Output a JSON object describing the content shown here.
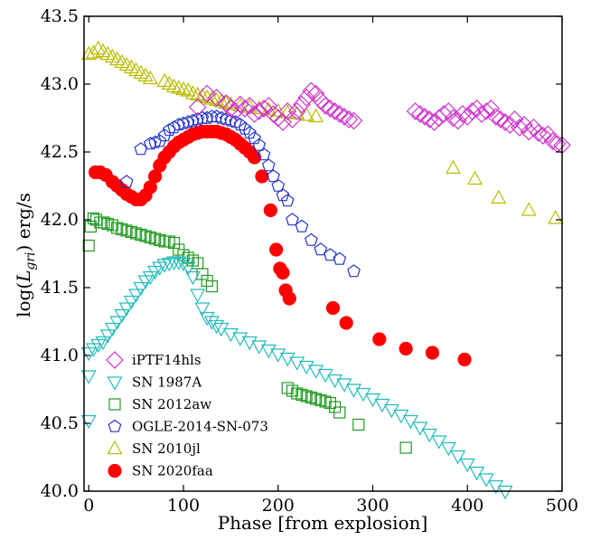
{
  "chart_data": {
    "type": "scatter",
    "title": "",
    "xlabel": "Phase [from explosion]",
    "ylabel": "log(L_gri) erg/s",
    "ylabel_parts": {
      "pre": "log(",
      "italic": "L",
      "sub": "gri",
      "post": ") erg/s"
    },
    "xlim": [
      -5,
      500
    ],
    "ylim": [
      40.0,
      43.5
    ],
    "xticks": [
      0,
      100,
      200,
      300,
      400,
      500
    ],
    "yticks": [
      40.0,
      40.5,
      41.0,
      41.5,
      42.0,
      42.5,
      43.0,
      43.5
    ],
    "xtick_labels": [
      "0",
      "100",
      "200",
      "300",
      "400",
      "500"
    ],
    "ytick_labels": [
      "40.0",
      "40.5",
      "41.0",
      "41.5",
      "42.0",
      "42.5",
      "43.0",
      "43.5"
    ],
    "grid": false,
    "legend_position": "lower-left",
    "series": [
      {
        "name": "iPTF14hls",
        "marker": "diamond",
        "color": "#cc33cc",
        "filled": false,
        "points": [
          [
            115,
            42.83
          ],
          [
            125,
            42.93
          ],
          [
            135,
            42.9
          ],
          [
            145,
            42.86
          ],
          [
            150,
            42.82
          ],
          [
            155,
            42.8
          ],
          [
            160,
            42.85
          ],
          [
            165,
            42.82
          ],
          [
            170,
            42.84
          ],
          [
            175,
            42.78
          ],
          [
            180,
            42.8
          ],
          [
            185,
            42.82
          ],
          [
            190,
            42.84
          ],
          [
            195,
            42.78
          ],
          [
            200,
            42.75
          ],
          [
            205,
            42.72
          ],
          [
            210,
            42.8
          ],
          [
            215,
            42.74
          ],
          [
            220,
            42.8
          ],
          [
            225,
            42.85
          ],
          [
            230,
            42.9
          ],
          [
            235,
            42.95
          ],
          [
            240,
            42.93
          ],
          [
            245,
            42.88
          ],
          [
            250,
            42.84
          ],
          [
            255,
            42.82
          ],
          [
            260,
            42.8
          ],
          [
            265,
            42.78
          ],
          [
            270,
            42.76
          ],
          [
            275,
            42.74
          ],
          [
            280,
            42.73
          ],
          [
            345,
            42.8
          ],
          [
            350,
            42.78
          ],
          [
            355,
            42.76
          ],
          [
            360,
            42.74
          ],
          [
            365,
            42.72
          ],
          [
            370,
            42.75
          ],
          [
            375,
            42.78
          ],
          [
            380,
            42.8
          ],
          [
            385,
            42.75
          ],
          [
            390,
            42.73
          ],
          [
            395,
            42.78
          ],
          [
            400,
            42.76
          ],
          [
            405,
            42.8
          ],
          [
            410,
            42.82
          ],
          [
            415,
            42.78
          ],
          [
            420,
            42.8
          ],
          [
            425,
            42.82
          ],
          [
            430,
            42.76
          ],
          [
            435,
            42.74
          ],
          [
            440,
            42.72
          ],
          [
            445,
            42.7
          ],
          [
            450,
            42.74
          ],
          [
            455,
            42.68
          ],
          [
            460,
            42.7
          ],
          [
            465,
            42.65
          ],
          [
            470,
            42.68
          ],
          [
            475,
            42.64
          ],
          [
            480,
            42.62
          ],
          [
            485,
            42.63
          ],
          [
            490,
            42.58
          ],
          [
            495,
            42.56
          ],
          [
            500,
            42.55
          ]
        ]
      },
      {
        "name": "SN 1987A",
        "marker": "triangle-down",
        "color": "#22bbbb",
        "filled": false,
        "points": [
          [
            0,
            41.02
          ],
          [
            0,
            40.85
          ],
          [
            0,
            40.52
          ],
          [
            5,
            41.05
          ],
          [
            10,
            41.08
          ],
          [
            15,
            41.1
          ],
          [
            20,
            41.15
          ],
          [
            25,
            41.2
          ],
          [
            30,
            41.25
          ],
          [
            35,
            41.3
          ],
          [
            40,
            41.35
          ],
          [
            45,
            41.4
          ],
          [
            50,
            41.45
          ],
          [
            55,
            41.5
          ],
          [
            60,
            41.55
          ],
          [
            65,
            41.58
          ],
          [
            70,
            41.62
          ],
          [
            75,
            41.65
          ],
          [
            80,
            41.67
          ],
          [
            85,
            41.68
          ],
          [
            90,
            41.69
          ],
          [
            95,
            41.69
          ],
          [
            100,
            41.68
          ],
          [
            105,
            41.65
          ],
          [
            110,
            41.58
          ],
          [
            115,
            41.45
          ],
          [
            120,
            41.35
          ],
          [
            125,
            41.28
          ],
          [
            130,
            41.25
          ],
          [
            135,
            41.22
          ],
          [
            140,
            41.2
          ],
          [
            150,
            41.16
          ],
          [
            160,
            41.13
          ],
          [
            170,
            41.1
          ],
          [
            180,
            41.07
          ],
          [
            190,
            41.04
          ],
          [
            200,
            41.01
          ],
          [
            210,
            40.98
          ],
          [
            220,
            40.95
          ],
          [
            230,
            40.92
          ],
          [
            240,
            40.89
          ],
          [
            250,
            40.86
          ],
          [
            260,
            40.82
          ],
          [
            270,
            40.79
          ],
          [
            280,
            40.75
          ],
          [
            290,
            40.72
          ],
          [
            300,
            40.68
          ],
          [
            310,
            40.64
          ],
          [
            320,
            40.6
          ],
          [
            330,
            40.56
          ],
          [
            340,
            40.52
          ],
          [
            350,
            40.47
          ],
          [
            360,
            40.42
          ],
          [
            370,
            40.37
          ],
          [
            380,
            40.32
          ],
          [
            390,
            40.26
          ],
          [
            400,
            40.2
          ],
          [
            410,
            40.14
          ],
          [
            420,
            40.09
          ],
          [
            430,
            40.04
          ],
          [
            440,
            40.0
          ]
        ]
      },
      {
        "name": "SN 2012aw",
        "marker": "square",
        "color": "#229922",
        "filled": false,
        "points": [
          [
            0,
            41.81
          ],
          [
            2,
            41.95
          ],
          [
            5,
            42.01
          ],
          [
            8,
            42.0
          ],
          [
            12,
            41.98
          ],
          [
            16,
            41.98
          ],
          [
            20,
            41.97
          ],
          [
            25,
            41.96
          ],
          [
            30,
            41.94
          ],
          [
            35,
            41.93
          ],
          [
            40,
            41.92
          ],
          [
            45,
            41.91
          ],
          [
            50,
            41.9
          ],
          [
            55,
            41.89
          ],
          [
            60,
            41.88
          ],
          [
            65,
            41.87
          ],
          [
            70,
            41.86
          ],
          [
            75,
            41.85
          ],
          [
            80,
            41.84
          ],
          [
            85,
            41.84
          ],
          [
            90,
            41.83
          ],
          [
            95,
            41.78
          ],
          [
            100,
            41.74
          ],
          [
            105,
            41.72
          ],
          [
            110,
            41.7
          ],
          [
            115,
            41.68
          ],
          [
            120,
            41.6
          ],
          [
            125,
            41.55
          ],
          [
            130,
            41.51
          ],
          [
            210,
            40.76
          ],
          [
            215,
            40.74
          ],
          [
            220,
            40.72
          ],
          [
            225,
            40.71
          ],
          [
            230,
            40.7
          ],
          [
            235,
            40.69
          ],
          [
            240,
            40.68
          ],
          [
            245,
            40.67
          ],
          [
            250,
            40.66
          ],
          [
            255,
            40.65
          ],
          [
            260,
            40.62
          ],
          [
            265,
            40.58
          ],
          [
            285,
            40.49
          ],
          [
            335,
            40.32
          ]
        ]
      },
      {
        "name": "OGLE-2014-SN-073",
        "marker": "pentagon",
        "color": "#2233cc",
        "filled": false,
        "points": [
          [
            40,
            42.28
          ],
          [
            55,
            42.52
          ],
          [
            65,
            42.56
          ],
          [
            70,
            42.57
          ],
          [
            75,
            42.58
          ],
          [
            80,
            42.62
          ],
          [
            85,
            42.66
          ],
          [
            90,
            42.68
          ],
          [
            95,
            42.7
          ],
          [
            100,
            42.71
          ],
          [
            105,
            42.72
          ],
          [
            110,
            42.73
          ],
          [
            115,
            42.74
          ],
          [
            120,
            42.75
          ],
          [
            125,
            42.75
          ],
          [
            130,
            42.76
          ],
          [
            135,
            42.76
          ],
          [
            140,
            42.75
          ],
          [
            145,
            42.74
          ],
          [
            150,
            42.73
          ],
          [
            155,
            42.72
          ],
          [
            160,
            42.7
          ],
          [
            165,
            42.67
          ],
          [
            170,
            42.64
          ],
          [
            175,
            42.6
          ],
          [
            180,
            42.55
          ],
          [
            185,
            42.48
          ],
          [
            190,
            42.4
          ],
          [
            195,
            42.32
          ],
          [
            200,
            42.25
          ],
          [
            205,
            42.18
          ],
          [
            210,
            42.14
          ],
          [
            215,
            42.0
          ],
          [
            225,
            41.95
          ],
          [
            235,
            41.85
          ],
          [
            245,
            41.78
          ],
          [
            255,
            41.74
          ],
          [
            265,
            41.71
          ],
          [
            280,
            41.62
          ]
        ]
      },
      {
        "name": "SN 2010jl",
        "marker": "triangle-up",
        "color": "#bbbb00",
        "filled": false,
        "points": [
          [
            0,
            43.22
          ],
          [
            5,
            43.23
          ],
          [
            10,
            43.26
          ],
          [
            15,
            43.24
          ],
          [
            20,
            43.22
          ],
          [
            25,
            43.2
          ],
          [
            30,
            43.18
          ],
          [
            35,
            43.16
          ],
          [
            40,
            43.14
          ],
          [
            45,
            43.12
          ],
          [
            50,
            43.1
          ],
          [
            55,
            43.08
          ],
          [
            60,
            43.06
          ],
          [
            65,
            43.04
          ],
          [
            80,
            43.02
          ],
          [
            85,
            43.0
          ],
          [
            90,
            42.98
          ],
          [
            95,
            42.97
          ],
          [
            100,
            42.96
          ],
          [
            105,
            42.95
          ],
          [
            110,
            42.93
          ],
          [
            115,
            42.92
          ],
          [
            120,
            42.91
          ],
          [
            125,
            42.9
          ],
          [
            130,
            42.89
          ],
          [
            135,
            42.88
          ],
          [
            140,
            42.87
          ],
          [
            145,
            42.86
          ],
          [
            150,
            42.85
          ],
          [
            160,
            42.84
          ],
          [
            170,
            42.83
          ],
          [
            180,
            42.82
          ],
          [
            190,
            42.81
          ],
          [
            200,
            42.8
          ],
          [
            210,
            42.79
          ],
          [
            220,
            42.78
          ],
          [
            230,
            42.77
          ],
          [
            240,
            42.76
          ],
          [
            385,
            42.38
          ],
          [
            408,
            42.3
          ],
          [
            433,
            42.16
          ],
          [
            465,
            42.07
          ],
          [
            493,
            42.01
          ]
        ]
      },
      {
        "name": "SN 2020faa",
        "marker": "circle",
        "color": "#ff0000",
        "filled": true,
        "points": [
          [
            7,
            42.35
          ],
          [
            12,
            42.35
          ],
          [
            18,
            42.33
          ],
          [
            25,
            42.28
          ],
          [
            30,
            42.25
          ],
          [
            35,
            42.22
          ],
          [
            40,
            42.19
          ],
          [
            45,
            42.17
          ],
          [
            50,
            42.15
          ],
          [
            55,
            42.15
          ],
          [
            60,
            42.18
          ],
          [
            65,
            42.24
          ],
          [
            70,
            42.32
          ],
          [
            75,
            42.4
          ],
          [
            80,
            42.46
          ],
          [
            85,
            42.5
          ],
          [
            90,
            42.54
          ],
          [
            95,
            42.57
          ],
          [
            100,
            42.59
          ],
          [
            105,
            42.61
          ],
          [
            110,
            42.63
          ],
          [
            115,
            42.64
          ],
          [
            120,
            42.65
          ],
          [
            125,
            42.65
          ],
          [
            130,
            42.65
          ],
          [
            135,
            42.65
          ],
          [
            140,
            42.64
          ],
          [
            145,
            42.63
          ],
          [
            150,
            42.61
          ],
          [
            155,
            42.59
          ],
          [
            160,
            42.56
          ],
          [
            165,
            42.53
          ],
          [
            170,
            42.5
          ],
          [
            175,
            42.46
          ],
          [
            183,
            42.32
          ],
          [
            192,
            42.07
          ],
          [
            198,
            41.78
          ],
          [
            202,
            41.64
          ],
          [
            205,
            41.61
          ],
          [
            208,
            41.48
          ],
          [
            212,
            41.42
          ],
          [
            258,
            41.35
          ],
          [
            272,
            41.24
          ],
          [
            307,
            41.12
          ],
          [
            335,
            41.05
          ],
          [
            363,
            41.02
          ],
          [
            397,
            40.97
          ]
        ]
      }
    ]
  }
}
